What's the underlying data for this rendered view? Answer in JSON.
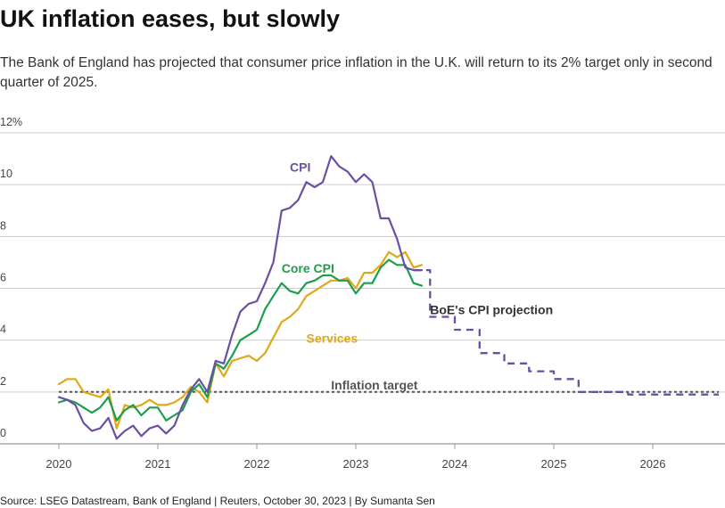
{
  "header": {
    "title": "UK inflation eases, but slowly",
    "subtitle": "The Bank of England has projected that consumer price inflation in the U.K. will return to its 2% target only in second quarter of 2025."
  },
  "footer": {
    "source": "Source: LSEG Datastream, Bank of England | Reuters, October 30, 2023 | By Sumanta Sen"
  },
  "chart_data": {
    "type": "line",
    "title": "UK inflation eases, but slowly",
    "ylabel": "",
    "xlabel": "",
    "y_unit": "%",
    "ylim": [
      0,
      12
    ],
    "xlim": [
      "2020-01",
      "2026-09"
    ],
    "y_ticks": [
      0,
      2,
      4,
      6,
      8,
      10,
      12
    ],
    "y_tick_labels": [
      "0",
      "2",
      "4",
      "6",
      "8",
      "10",
      "12%"
    ],
    "x_ticks": [
      "2020-01",
      "2021-01",
      "2022-01",
      "2023-01",
      "2024-01",
      "2025-01",
      "2026-01"
    ],
    "x_tick_labels": [
      "2020",
      "2021",
      "2022",
      "2023",
      "2024",
      "2025",
      "2026"
    ],
    "grid": "horizontal",
    "colors": {
      "cpi": "#6a4fa3",
      "core": "#1c9e4c",
      "services": "#e0a814",
      "target": "#555555",
      "grid": "#cccccc"
    },
    "series": [
      {
        "key": "cpi",
        "name": "CPI",
        "style": "solid",
        "start": "2020-01",
        "values": [
          1.8,
          1.7,
          1.5,
          0.8,
          0.5,
          0.6,
          1.0,
          0.2,
          0.5,
          0.7,
          0.3,
          0.6,
          0.7,
          0.4,
          0.7,
          1.5,
          2.1,
          2.5,
          2.0,
          3.2,
          3.1,
          4.2,
          5.1,
          5.4,
          5.5,
          6.2,
          7.0,
          9.0,
          9.1,
          9.4,
          10.1,
          9.9,
          10.1,
          11.1,
          10.7,
          10.5,
          10.1,
          10.4,
          10.1,
          8.7,
          8.7,
          7.9,
          6.8,
          6.7,
          6.7
        ]
      },
      {
        "key": "core",
        "name": "Core CPI",
        "style": "solid",
        "start": "2020-01",
        "values": [
          1.6,
          1.7,
          1.6,
          1.4,
          1.2,
          1.4,
          1.8,
          0.9,
          1.3,
          1.5,
          1.1,
          1.4,
          1.4,
          0.9,
          1.1,
          1.3,
          2.0,
          2.3,
          1.8,
          3.1,
          2.9,
          3.4,
          4.0,
          4.2,
          4.4,
          5.2,
          5.7,
          6.2,
          5.9,
          5.8,
          6.2,
          6.3,
          6.5,
          6.5,
          6.3,
          6.3,
          5.8,
          6.2,
          6.2,
          6.8,
          7.1,
          6.9,
          6.9,
          6.2,
          6.1
        ]
      },
      {
        "key": "services",
        "name": "Services",
        "style": "solid",
        "start": "2020-01",
        "values": [
          2.3,
          2.5,
          2.5,
          2.0,
          1.9,
          1.8,
          2.1,
          0.6,
          1.5,
          1.4,
          1.5,
          1.7,
          1.5,
          1.5,
          1.6,
          1.8,
          2.2,
          2.0,
          1.6,
          3.1,
          2.6,
          3.2,
          3.3,
          3.4,
          3.2,
          3.5,
          4.1,
          4.7,
          4.9,
          5.2,
          5.7,
          5.9,
          6.1,
          6.3,
          6.3,
          6.4,
          6.0,
          6.6,
          6.6,
          6.9,
          7.4,
          7.2,
          7.4,
          6.8,
          6.9
        ]
      },
      {
        "key": "projection",
        "name": "BoE's CPI projection",
        "style": "dashed",
        "step": "quarterly",
        "points": [
          [
            "2023-08",
            6.7
          ],
          [
            "2023-09",
            6.7
          ],
          [
            "2023-10",
            4.9
          ],
          [
            "2024-01",
            4.4
          ],
          [
            "2024-04",
            3.5
          ],
          [
            "2024-07",
            3.1
          ],
          [
            "2024-10",
            2.8
          ],
          [
            "2025-01",
            2.5
          ],
          [
            "2025-04",
            2.0
          ],
          [
            "2025-07",
            2.0
          ],
          [
            "2025-10",
            1.9
          ],
          [
            "2026-01",
            1.9
          ],
          [
            "2026-04",
            1.9
          ],
          [
            "2026-07",
            1.9
          ],
          [
            "2026-09",
            1.9
          ]
        ]
      },
      {
        "key": "target",
        "name": "Inflation target",
        "style": "dotted",
        "points": [
          [
            "2020-01",
            2.0
          ],
          [
            "2026-09",
            2.0
          ]
        ]
      }
    ],
    "annotations": [
      {
        "key": "cpi",
        "text": "CPI",
        "at": [
          "2022-05",
          10.5
        ]
      },
      {
        "key": "core",
        "text": "Core CPI",
        "at": [
          "2022-04",
          6.6
        ]
      },
      {
        "key": "services",
        "text": "Services",
        "at": [
          "2022-07",
          3.9
        ]
      },
      {
        "key": "projection",
        "text": "BoE's CPI projection",
        "at": [
          "2023-10",
          5.0
        ]
      },
      {
        "key": "target",
        "text": "Inflation target",
        "at": [
          "2022-10",
          2.1
        ]
      }
    ]
  }
}
